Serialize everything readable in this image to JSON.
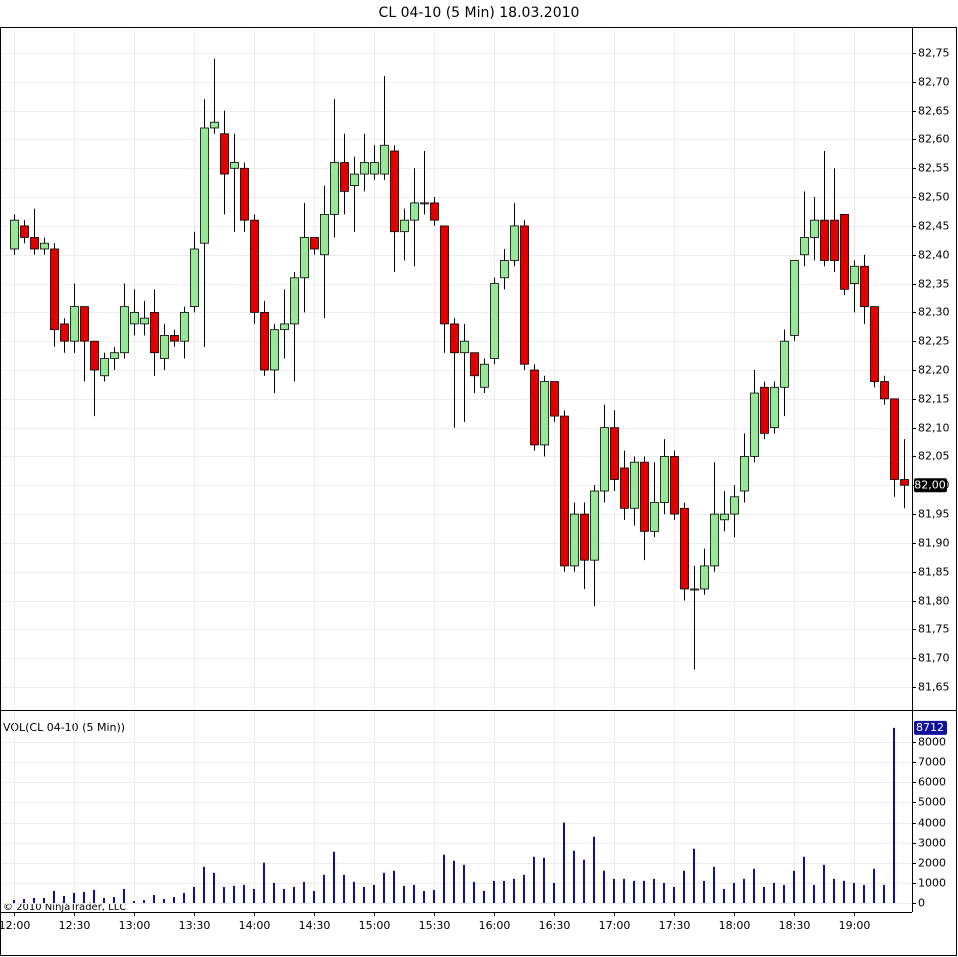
{
  "chart_data": [
    {
      "type": "candlestick",
      "title": "CL 04-10 (5 Min)  18.03.2010",
      "categories": [
        "12:00",
        null,
        null,
        null,
        null,
        null,
        "12:30",
        null,
        null,
        null,
        null,
        null,
        "13:00",
        null,
        null,
        null,
        null,
        null,
        "13:30",
        null,
        null,
        null,
        null,
        null,
        "14:00",
        null,
        null,
        null,
        null,
        null,
        "14:30",
        null,
        null,
        null,
        null,
        null,
        "15:00",
        null,
        null,
        null,
        null,
        null,
        "15:30",
        null,
        null,
        null,
        null,
        null,
        "16:00",
        null,
        null,
        null,
        null,
        null,
        "16:30",
        null,
        null,
        null,
        null,
        null,
        "17:00",
        null,
        null,
        null,
        null,
        null,
        "17:30",
        null,
        null,
        null,
        null,
        null,
        "18:00",
        null,
        null,
        null,
        null,
        null,
        "18:30",
        null,
        null,
        null,
        null,
        null,
        "19:00",
        null,
        null,
        null,
        null,
        null
      ],
      "open": [
        82.41,
        82.45,
        82.43,
        82.41,
        82.41,
        82.28,
        82.25,
        82.31,
        82.25,
        82.19,
        82.22,
        82.23,
        82.28,
        82.28,
        82.3,
        82.22,
        82.26,
        82.25,
        82.31,
        82.42,
        82.62,
        82.61,
        82.55,
        82.55,
        82.46,
        82.3,
        82.2,
        82.27,
        82.28,
        82.36,
        82.43,
        82.4,
        82.47,
        82.56,
        82.52,
        82.54,
        82.54,
        82.54,
        82.58,
        82.44,
        82.46,
        82.49,
        82.49,
        82.45,
        82.28,
        82.23,
        82.23,
        82.17,
        82.22,
        82.36,
        82.39,
        82.45,
        82.2,
        82.07,
        82.18,
        82.12,
        81.86,
        81.95,
        81.87,
        81.99,
        82.1,
        82.03,
        81.96,
        82.04,
        81.92,
        81.97,
        82.05,
        81.96,
        81.82,
        81.82,
        81.86,
        81.94,
        81.95,
        81.99,
        82.05,
        82.17,
        82.1,
        82.17,
        82.26,
        82.4,
        82.43,
        82.46,
        82.46,
        82.47,
        82.35,
        82.38,
        82.31,
        82.18,
        82.15,
        82.01
      ],
      "high": [
        82.47,
        82.46,
        82.48,
        82.43,
        82.42,
        82.29,
        82.35,
        82.31,
        82.25,
        82.23,
        82.24,
        82.35,
        82.34,
        82.32,
        82.34,
        82.28,
        82.27,
        82.31,
        82.44,
        82.67,
        82.74,
        82.65,
        82.61,
        82.56,
        82.47,
        82.32,
        82.28,
        82.34,
        82.37,
        82.49,
        82.43,
        82.52,
        82.67,
        82.61,
        82.57,
        82.61,
        82.59,
        82.71,
        82.59,
        82.48,
        82.55,
        82.58,
        82.5,
        82.45,
        82.29,
        82.28,
        82.23,
        82.22,
        82.36,
        82.41,
        82.49,
        82.46,
        82.21,
        82.19,
        82.18,
        82.13,
        81.97,
        81.97,
        82.0,
        82.14,
        82.13,
        82.06,
        82.05,
        82.05,
        82.04,
        82.08,
        82.06,
        81.97,
        81.86,
        81.89,
        82.04,
        81.99,
        82.0,
        82.09,
        82.2,
        82.18,
        82.18,
        82.27,
        82.39,
        82.51,
        82.5,
        82.58,
        82.55,
        82.47,
        82.39,
        82.4,
        82.31,
        82.19,
        82.15,
        82.08
      ],
      "low": [
        82.4,
        82.42,
        82.4,
        82.4,
        82.24,
        82.23,
        82.23,
        82.18,
        82.12,
        82.18,
        82.2,
        82.22,
        82.26,
        82.26,
        82.19,
        82.2,
        82.24,
        82.22,
        82.3,
        82.24,
        82.61,
        82.47,
        82.44,
        82.44,
        82.28,
        82.19,
        82.16,
        82.22,
        82.18,
        82.3,
        82.4,
        82.29,
        82.43,
        82.47,
        82.44,
        82.51,
        82.53,
        82.53,
        82.37,
        82.39,
        82.38,
        82.47,
        82.45,
        82.23,
        82.1,
        82.11,
        82.16,
        82.16,
        82.21,
        82.34,
        82.38,
        82.2,
        82.06,
        82.05,
        82.11,
        81.85,
        81.85,
        81.82,
        81.79,
        81.97,
        81.99,
        81.94,
        81.93,
        81.87,
        81.91,
        81.95,
        81.94,
        81.8,
        81.68,
        81.81,
        81.85,
        81.92,
        81.91,
        81.97,
        82.04,
        82.08,
        82.09,
        82.12,
        82.25,
        82.38,
        82.39,
        82.38,
        82.37,
        82.33,
        82.3,
        82.28,
        82.17,
        82.14,
        81.98,
        81.96
      ],
      "close": [
        82.46,
        82.43,
        82.41,
        82.42,
        82.27,
        82.25,
        82.31,
        82.25,
        82.2,
        82.22,
        82.23,
        82.31,
        82.3,
        82.29,
        82.23,
        82.26,
        82.25,
        82.3,
        82.41,
        82.62,
        82.63,
        82.54,
        82.56,
        82.46,
        82.3,
        82.2,
        82.27,
        82.28,
        82.36,
        82.43,
        82.41,
        82.47,
        82.56,
        82.51,
        82.54,
        82.56,
        82.56,
        82.59,
        82.44,
        82.46,
        82.49,
        82.49,
        82.46,
        82.28,
        82.23,
        82.25,
        82.19,
        82.21,
        82.35,
        82.39,
        82.45,
        82.21,
        82.07,
        82.18,
        82.12,
        81.86,
        81.95,
        81.87,
        81.99,
        82.1,
        82.01,
        81.96,
        82.04,
        81.92,
        81.97,
        82.05,
        81.95,
        81.82,
        81.82,
        81.86,
        81.95,
        81.95,
        81.98,
        82.05,
        82.16,
        82.09,
        82.17,
        82.25,
        82.39,
        82.43,
        82.46,
        82.39,
        82.39,
        82.34,
        82.38,
        82.31,
        82.18,
        82.15,
        82.01,
        82.0
      ],
      "up_color": "#98e698",
      "down_color": "#e00000",
      "ylim": [
        81.61,
        82.79
      ],
      "yticks": [
        {
          "value": 81.65,
          "label": "81,65"
        },
        {
          "value": 81.7,
          "label": "81,70"
        },
        {
          "value": 81.75,
          "label": "81,75"
        },
        {
          "value": 81.8,
          "label": "81,80"
        },
        {
          "value": 81.85,
          "label": "81,85"
        },
        {
          "value": 81.9,
          "label": "81,90"
        },
        {
          "value": 81.95,
          "label": "81,95"
        },
        {
          "value": 82.0,
          "label": "82,00"
        },
        {
          "value": 82.05,
          "label": "82,05"
        },
        {
          "value": 82.1,
          "label": "82,10"
        },
        {
          "value": 82.15,
          "label": "82,15"
        },
        {
          "value": 82.2,
          "label": "82,20"
        },
        {
          "value": 82.25,
          "label": "82,25"
        },
        {
          "value": 82.3,
          "label": "82,30"
        },
        {
          "value": 82.35,
          "label": "82,35"
        },
        {
          "value": 82.4,
          "label": "82,40"
        },
        {
          "value": 82.45,
          "label": "82,45"
        },
        {
          "value": 82.5,
          "label": "82,50"
        },
        {
          "value": 82.55,
          "label": "82,55"
        },
        {
          "value": 82.6,
          "label": "82,60"
        },
        {
          "value": 82.65,
          "label": "82,65"
        },
        {
          "value": 82.7,
          "label": "82,70"
        },
        {
          "value": 82.75,
          "label": "82,75"
        }
      ],
      "last_marker": {
        "value": 82.0,
        "label": "82,00"
      },
      "grid": true
    },
    {
      "type": "bar",
      "title": "VOL(CL 04-10 (5 Min))",
      "annotation": "© 2010 NinjaTrader, LLC",
      "values": [
        150,
        200,
        250,
        250,
        600,
        350,
        500,
        550,
        650,
        250,
        300,
        700,
        100,
        150,
        400,
        200,
        300,
        500,
        800,
        1800,
        1500,
        800,
        850,
        900,
        700,
        2000,
        1000,
        700,
        800,
        1050,
        600,
        1400,
        2550,
        1400,
        1050,
        800,
        900,
        1500,
        1600,
        850,
        900,
        600,
        650,
        2400,
        2100,
        1900,
        1050,
        600,
        1100,
        1100,
        1200,
        1400,
        2300,
        2250,
        1000,
        4000,
        2600,
        2150,
        3300,
        1600,
        1200,
        1200,
        1100,
        1100,
        1200,
        1000,
        800,
        1600,
        2700,
        1100,
        1800,
        700,
        1000,
        1200,
        1700,
        800,
        1000,
        900,
        1600,
        2300,
        900,
        1900,
        1200,
        1100,
        1000,
        900,
        1700,
        900,
        8712,
        null
      ],
      "color": "#1010a0",
      "ylim": [
        0,
        9500
      ],
      "yticks": [
        0,
        1000,
        2000,
        3000,
        4000,
        5000,
        6000,
        7000,
        8000
      ],
      "last_marker": 8712,
      "grid": true
    }
  ]
}
